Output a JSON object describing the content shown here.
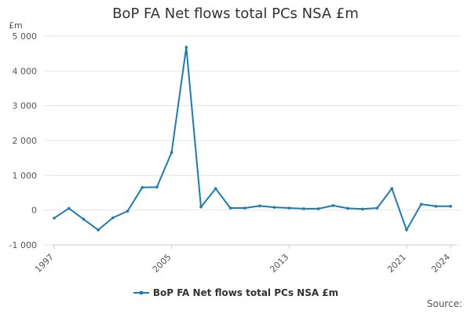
{
  "chart_data": {
    "type": "line",
    "title": "BoP FA Net flows total PCs NSA £m",
    "ylabel": "£m",
    "xlabel": "",
    "ylim": [
      -1000,
      5000
    ],
    "yticks": [
      -1000,
      0,
      1000,
      2000,
      3000,
      4000,
      5000
    ],
    "ytick_labels": [
      "-1 000",
      "0",
      "1 000",
      "2 000",
      "3 000",
      "4 000",
      "5 000"
    ],
    "xticks": [
      1997,
      2005,
      2013,
      2021,
      2024
    ],
    "xlim": [
      1997,
      2024
    ],
    "grid": true,
    "legend_position": "bottom",
    "x": [
      1997,
      1998,
      1999,
      2000,
      2001,
      2002,
      2003,
      2004,
      2005,
      2006,
      2007,
      2008,
      2009,
      2010,
      2011,
      2012,
      2013,
      2014,
      2015,
      2016,
      2017,
      2018,
      2019,
      2020,
      2021,
      2022,
      2023,
      2024
    ],
    "series": [
      {
        "name": "BoP FA Net flows total PCs NSA £m",
        "color": "#1a7bb5",
        "values": [
          -230,
          50,
          -260,
          -570,
          -220,
          -30,
          650,
          660,
          1660,
          4680,
          90,
          620,
          60,
          60,
          120,
          80,
          60,
          40,
          40,
          130,
          50,
          30,
          60,
          620,
          -570,
          170,
          110,
          110
        ]
      }
    ],
    "source_label": "Source:"
  }
}
